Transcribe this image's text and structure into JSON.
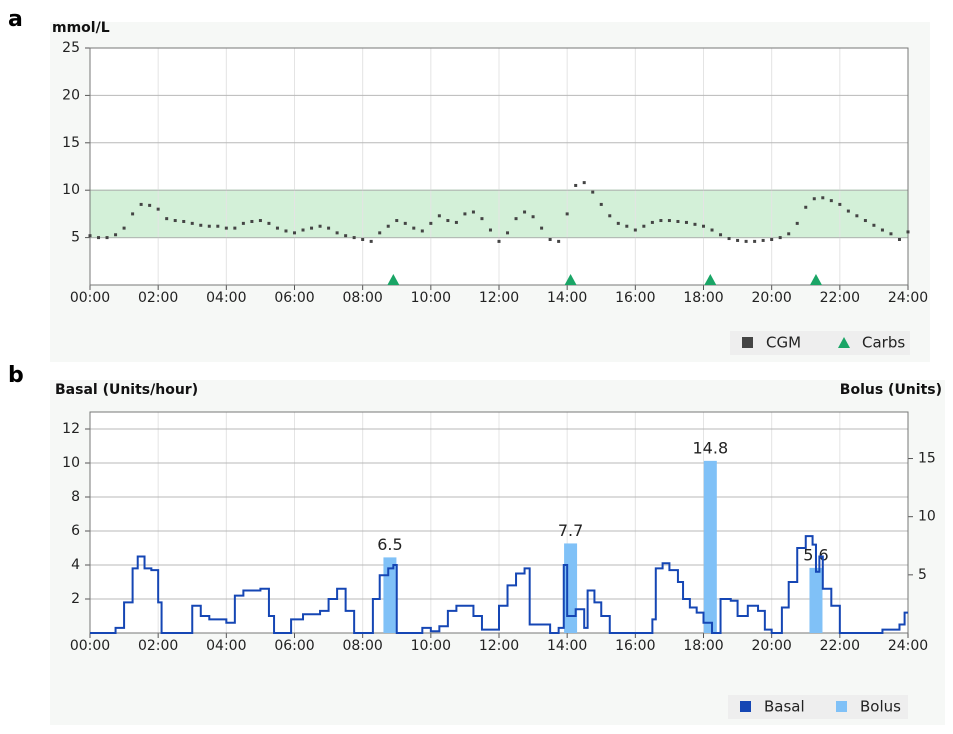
{
  "chart_data": [
    {
      "type": "scatter",
      "panel_label": "a",
      "y_label": "mmol/L",
      "xlim": [
        0,
        24
      ],
      "xticks": [
        {
          "value": 0,
          "label": "00:00"
        },
        {
          "value": 2,
          "label": "02:00"
        },
        {
          "value": 4,
          "label": "04:00"
        },
        {
          "value": 6,
          "label": "06:00"
        },
        {
          "value": 8,
          "label": "08:00"
        },
        {
          "value": 10,
          "label": "10:00"
        },
        {
          "value": 12,
          "label": "12:00"
        },
        {
          "value": 14,
          "label": "14:00"
        },
        {
          "value": 16,
          "label": "16:00"
        },
        {
          "value": 18,
          "label": "18:00"
        },
        {
          "value": 20,
          "label": "20:00"
        },
        {
          "value": 22,
          "label": "22:00"
        },
        {
          "value": 24,
          "label": "24:00"
        }
      ],
      "ylim": [
        0,
        25
      ],
      "yticks": [
        5,
        10,
        15,
        20,
        25
      ],
      "grid": true,
      "target_range": [
        5,
        10
      ],
      "target_color": "#d3f0d8",
      "legend": "bottom-right",
      "series": [
        {
          "name": "CGM",
          "type": "scatter",
          "color": "#444444",
          "x": [
            0,
            0.25,
            0.5,
            0.75,
            1,
            1.25,
            1.5,
            1.75,
            2,
            2.25,
            2.5,
            2.75,
            3,
            3.25,
            3.5,
            3.75,
            4,
            4.25,
            4.5,
            4.75,
            5,
            5.25,
            5.5,
            5.75,
            6,
            6.25,
            6.5,
            6.75,
            7,
            7.25,
            7.5,
            7.75,
            8,
            8.25,
            8.5,
            8.75,
            9,
            9.25,
            9.5,
            9.75,
            10,
            10.25,
            10.5,
            10.75,
            11,
            11.25,
            11.5,
            11.75,
            12,
            12.25,
            12.5,
            12.75,
            13,
            13.25,
            13.5,
            13.75,
            14,
            14.25,
            14.5,
            14.75,
            15,
            15.25,
            15.5,
            15.75,
            16,
            16.25,
            16.5,
            16.75,
            17,
            17.25,
            17.5,
            17.75,
            18,
            18.25,
            18.5,
            18.75,
            19,
            19.25,
            19.5,
            19.75,
            20,
            20.25,
            20.5,
            20.75,
            21,
            21.25,
            21.5,
            21.75,
            22,
            22.25,
            22.5,
            22.75,
            23,
            23.25,
            23.5,
            23.75,
            24
          ],
          "values": [
            5.2,
            5.0,
            5.0,
            5.3,
            6.0,
            7.5,
            8.5,
            8.4,
            8.0,
            7.0,
            6.8,
            6.7,
            6.5,
            6.3,
            6.2,
            6.2,
            6.0,
            6.0,
            6.5,
            6.7,
            6.8,
            6.5,
            6.0,
            5.7,
            5.5,
            5.8,
            6.0,
            6.2,
            6.0,
            5.5,
            5.2,
            5.0,
            4.8,
            4.6,
            5.5,
            6.2,
            6.8,
            6.5,
            6.0,
            5.7,
            6.5,
            7.3,
            6.8,
            6.6,
            7.5,
            7.7,
            7.0,
            5.8,
            4.6,
            5.5,
            7.0,
            7.7,
            7.2,
            6.0,
            4.8,
            4.6,
            7.5,
            10.5,
            10.8,
            9.8,
            8.5,
            7.3,
            6.5,
            6.2,
            5.8,
            6.2,
            6.6,
            6.8,
            6.8,
            6.7,
            6.6,
            6.4,
            6.2,
            5.8,
            5.3,
            4.9,
            4.7,
            4.6,
            4.6,
            4.7,
            4.8,
            5.0,
            5.4,
            6.5,
            8.2,
            9.1,
            9.2,
            8.9,
            8.5,
            7.8,
            7.3,
            6.8,
            6.3,
            5.8,
            5.4,
            4.8,
            5.6
          ]
        },
        {
          "name": "Carbs",
          "type": "marker",
          "color": "#1aa566",
          "x": [
            8.9,
            14.1,
            18.2,
            21.3
          ]
        }
      ]
    },
    {
      "type": "line",
      "panel_label": "b",
      "y_label": "Basal (Units/hour)",
      "y2_label": "Bolus (Units)",
      "xlim": [
        0,
        24
      ],
      "xticks": [
        {
          "value": 0,
          "label": "00:00"
        },
        {
          "value": 2,
          "label": "02:00"
        },
        {
          "value": 4,
          "label": "04:00"
        },
        {
          "value": 6,
          "label": "06:00"
        },
        {
          "value": 8,
          "label": "08:00"
        },
        {
          "value": 10,
          "label": "10:00"
        },
        {
          "value": 12,
          "label": "12:00"
        },
        {
          "value": 14,
          "label": "14:00"
        },
        {
          "value": 16,
          "label": "16:00"
        },
        {
          "value": 18,
          "label": "18:00"
        },
        {
          "value": 20,
          "label": "20:00"
        },
        {
          "value": 22,
          "label": "22:00"
        },
        {
          "value": 24,
          "label": "24:00"
        }
      ],
      "ylim": [
        0,
        13
      ],
      "yticks": [
        2,
        4,
        6,
        8,
        10,
        12
      ],
      "y2lim": [
        0,
        19
      ],
      "y2ticks": [
        5,
        10,
        15
      ],
      "grid": true,
      "legend": "bottom-right",
      "series": [
        {
          "name": "Basal",
          "type": "step",
          "color": "#1546b4",
          "x": [
            0,
            0.75,
            1.0,
            1.25,
            1.4,
            1.6,
            1.8,
            2.0,
            2.1,
            3.0,
            3.25,
            3.5,
            4.0,
            4.25,
            4.5,
            5.0,
            5.25,
            5.4,
            5.9,
            6.25,
            6.75,
            7.0,
            7.25,
            7.5,
            7.75,
            8.3,
            8.5,
            8.75,
            8.9,
            9.0,
            9.75,
            10.0,
            10.25,
            10.5,
            10.75,
            11.25,
            11.5,
            12.0,
            12.25,
            12.5,
            12.75,
            12.9,
            13.5,
            13.75,
            13.9,
            14.0,
            14.25,
            14.5,
            14.6,
            14.8,
            15.0,
            15.25,
            16.5,
            16.6,
            16.8,
            17.0,
            17.25,
            17.4,
            17.6,
            17.8,
            18.0,
            18.25,
            18.5,
            18.8,
            19.0,
            19.3,
            19.6,
            19.8,
            20.0,
            20.3,
            20.5,
            20.75,
            21.0,
            21.2,
            21.3,
            21.4,
            21.5,
            21.75,
            22.0,
            23.25,
            23.75,
            23.9
          ],
          "values": [
            0,
            0.3,
            1.8,
            3.8,
            4.5,
            3.8,
            3.7,
            1.8,
            0,
            1.6,
            1.0,
            0.8,
            0.6,
            2.2,
            2.5,
            2.6,
            1.0,
            0,
            0.8,
            1.1,
            1.3,
            2.0,
            2.6,
            1.3,
            0,
            2.0,
            3.4,
            3.8,
            4.0,
            0,
            0.3,
            0.1,
            0.4,
            1.3,
            1.6,
            1.0,
            0.2,
            1.6,
            2.8,
            3.5,
            3.8,
            0.5,
            0,
            0.3,
            4.0,
            1.0,
            1.4,
            0.3,
            2.5,
            1.8,
            1.0,
            0,
            0.8,
            3.8,
            4.1,
            3.7,
            3.0,
            2.0,
            1.5,
            1.2,
            0.6,
            0,
            2.0,
            1.9,
            1.0,
            1.6,
            1.3,
            0.2,
            0,
            1.5,
            3.0,
            5.0,
            5.7,
            5.2,
            3.6,
            4.5,
            2.6,
            1.6,
            0,
            0.2,
            0.5,
            1.2
          ]
        },
        {
          "name": "Bolus",
          "type": "bar",
          "axis": "y2",
          "color": "#80c1f7",
          "x": [
            8.8,
            14.1,
            18.2,
            21.3
          ],
          "values": [
            6.5,
            7.7,
            14.8,
            5.6
          ]
        }
      ]
    }
  ]
}
